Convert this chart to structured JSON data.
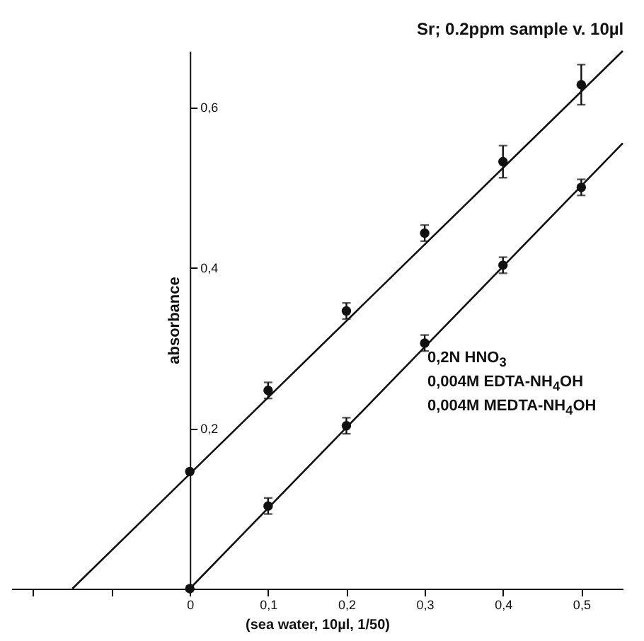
{
  "chart_data": {
    "type": "scatter",
    "title": "Sr; 0.2ppm   sample v. 10µl",
    "xlabel": "(sea water, 10µl, 1/50)",
    "ylabel": "absorbance",
    "xlim": [
      -0.228,
      0.553
    ],
    "ylim": [
      0,
      0.67
    ],
    "xticks": [
      {
        "value": -0.2,
        "label": null
      },
      {
        "value": -0.1,
        "label": null
      },
      0,
      {
        "value": 0.1,
        "label": "0,1"
      },
      {
        "value": 0.2,
        "label": "0,2"
      },
      {
        "value": 0.3,
        "label": "0,3"
      },
      {
        "value": 0.4,
        "label": "0,4"
      },
      {
        "value": 0.5,
        "label": "0,5"
      }
    ],
    "yticks": [
      {
        "value": 0.2,
        "label": "0,2"
      },
      {
        "value": 0.4,
        "label": "0,4"
      },
      {
        "value": 0.6,
        "label": "0,6"
      }
    ],
    "grid": false,
    "annotations": [
      "0,2N HNO$_{3}$",
      "0,004M EDTA-NH$_{4}$OH",
      "0,004M MEDTA-NH$_{4}$OH"
    ],
    "series": [
      {
        "marker": "circle",
        "color": "#111111",
        "x": [
          0,
          0.1,
          0.2,
          0.3,
          0.4,
          0.5
        ],
        "values": [
          0.146,
          0.247,
          0.346,
          0.443,
          0.532,
          0.628
        ],
        "errors": [
          null,
          0.01,
          0.01,
          0.01,
          0.02,
          0.025
        ]
      },
      {
        "marker": "circle",
        "color": "#111111",
        "x": [
          0,
          0.1,
          0.2,
          0.3,
          0.4,
          0.5
        ],
        "values": [
          0,
          0.103,
          0.203,
          0.306,
          0.403,
          0.5
        ],
        "errors": [
          null,
          0.01,
          0.01,
          0.01,
          0.01,
          0.01
        ]
      },
      {
        "type": "line",
        "color": "#111111",
        "x": [
          -0.15,
          0.553
        ],
        "values": [
          0,
          0.67
        ]
      },
      {
        "type": "line",
        "color": "#111111",
        "x": [
          0,
          0.553
        ],
        "values": [
          0,
          0.555
        ]
      }
    ]
  }
}
